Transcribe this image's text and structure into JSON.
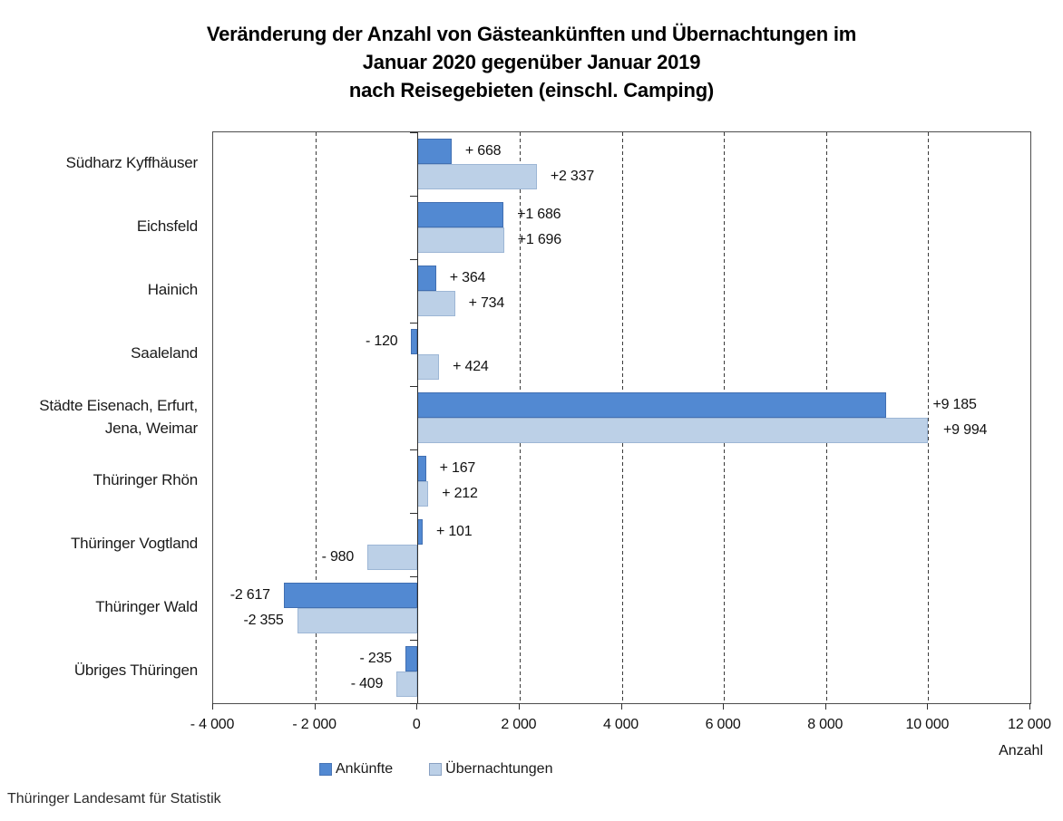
{
  "source_note": "Thüringer Landesamt für Statistik",
  "chart_data": {
    "type": "bar",
    "orientation": "horizontal",
    "title_lines": [
      "Veränderung der Anzahl von Gästeankünften und Übernachtungen im",
      "Januar 2020 gegenüber Januar 2019",
      "nach Reisegebieten (einschl. Camping)"
    ],
    "xlabel": "Anzahl",
    "xlim": [
      -4000,
      12000
    ],
    "xticks": [
      -4000,
      -2000,
      0,
      2000,
      4000,
      6000,
      8000,
      10000,
      12000
    ],
    "xtick_labels": [
      "- 4 000",
      "- 2 000",
      "0",
      "2 000",
      "4 000",
      "6 000",
      "8 000",
      "10 000",
      "12 000"
    ],
    "gridline_values": [
      -2000,
      2000,
      4000,
      6000,
      8000,
      10000
    ],
    "grid_style": "dashed",
    "legend_position": "bottom",
    "categories": [
      "Südharz Kyffhäuser",
      "Eichsfeld",
      "Hainich",
      "Saaleland",
      "Städte Eisenach, Erfurt,\nJena, Weimar",
      "Thüringer Rhön",
      "Thüringer Vogtland",
      "Thüringer Wald",
      "Übriges Thüringen"
    ],
    "series": [
      {
        "name": "Ankünfte",
        "color": "#5289d2",
        "values": [
          668,
          1686,
          364,
          -120,
          9185,
          167,
          101,
          -2617,
          -235
        ],
        "labels": [
          "+ 668",
          "+1 686",
          "+ 364",
          "- 120",
          "+9 185",
          "+ 167",
          "+ 101",
          "-2 617",
          "- 235"
        ],
        "label_dx": [
          0,
          0,
          0,
          0,
          36,
          0,
          0,
          0,
          0
        ]
      },
      {
        "name": "Übernachtungen",
        "color": "#bcd0e7",
        "values": [
          2337,
          1696,
          734,
          424,
          9994,
          212,
          -980,
          -2355,
          -409
        ],
        "labels": [
          "+2 337",
          "+1 696",
          "+ 734",
          "+ 424",
          "+9 994",
          "+ 212",
          "- 980",
          "-2 355",
          "- 409"
        ],
        "label_dx": [
          0,
          0,
          0,
          0,
          2,
          0,
          0,
          0,
          0
        ]
      }
    ]
  }
}
